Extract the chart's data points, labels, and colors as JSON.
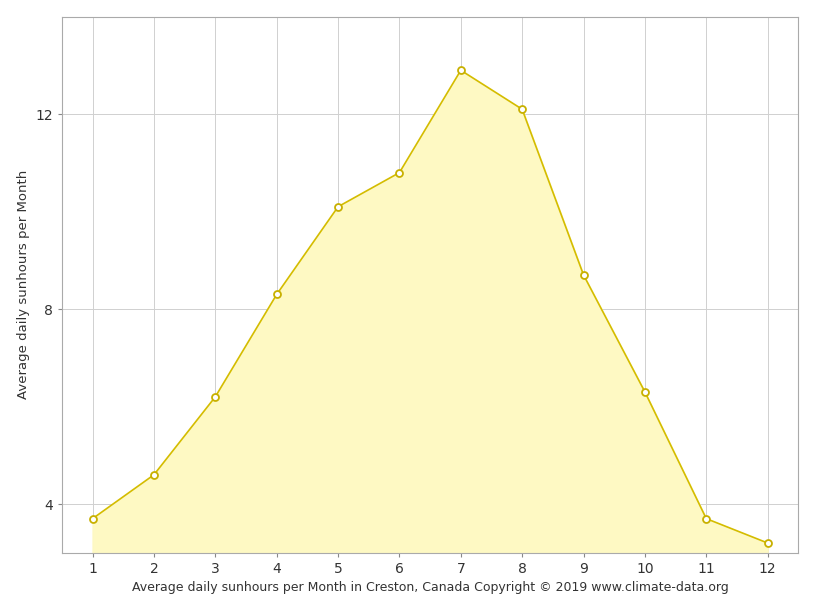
{
  "months": [
    1,
    2,
    3,
    4,
    5,
    6,
    7,
    8,
    9,
    10,
    11,
    12
  ],
  "sunhours": [
    3.7,
    4.6,
    6.2,
    8.3,
    10.1,
    10.8,
    12.9,
    12.1,
    8.7,
    6.3,
    3.7,
    3.2
  ],
  "fill_color": "#fef9c3",
  "line_color": "#d4bc00",
  "marker_facecolor": "#ffffff",
  "marker_edgecolor": "#c8b000",
  "xlabel": "Average daily sunhours per Month in Creston, Canada Copyright © 2019 www.climate-data.org",
  "ylabel": "Average daily sunhours per Month",
  "xlim": [
    0.5,
    12.5
  ],
  "ylim_bottom": 3.0,
  "ylim_top": 14.0,
  "fill_bottom": 3.0,
  "yticks": [
    4,
    8,
    12
  ],
  "xticks": [
    1,
    2,
    3,
    4,
    5,
    6,
    7,
    8,
    9,
    10,
    11,
    12
  ],
  "grid_color": "#d0d0d0",
  "background_color": "#ffffff",
  "xlabel_fontsize": 9,
  "ylabel_fontsize": 9.5,
  "tick_fontsize": 10,
  "marker_size": 5,
  "linewidth": 1.2
}
